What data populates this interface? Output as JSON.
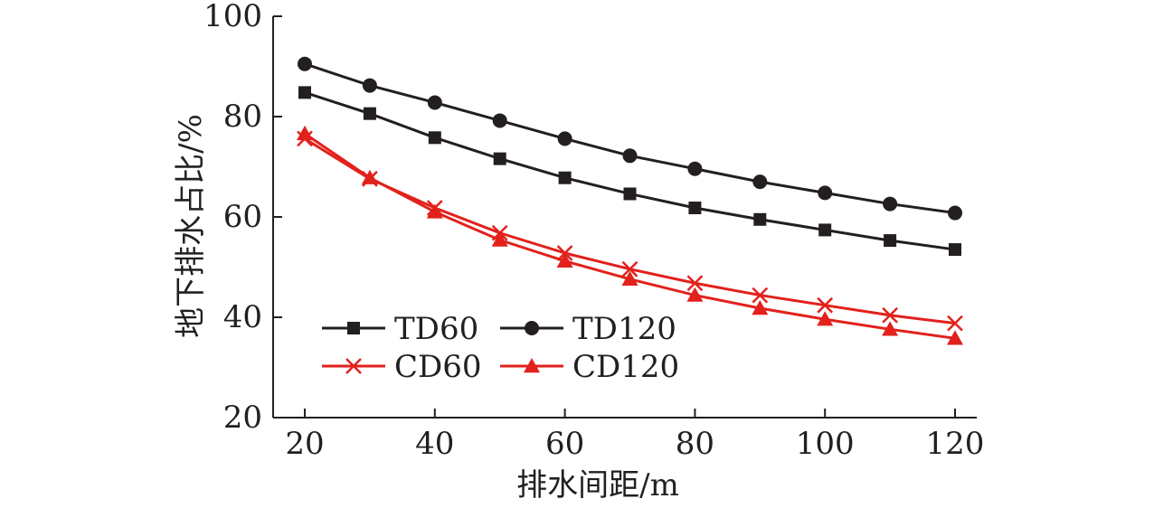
{
  "chart_data": {
    "type": "line",
    "title": "",
    "xlabel": "排水间距/m",
    "ylabel": "地下排水占比/%",
    "xlim": [
      15,
      125
    ],
    "ylim": [
      20,
      100
    ],
    "x_ticks": [
      20,
      40,
      60,
      80,
      100,
      120
    ],
    "y_ticks": [
      20,
      40,
      60,
      80,
      100
    ],
    "x": [
      20,
      30,
      40,
      50,
      60,
      70,
      80,
      90,
      100,
      110,
      120
    ],
    "grid": false,
    "legend_placement": "bottom-left",
    "series": [
      {
        "name": "TD60",
        "color": "#231f20",
        "marker": "square",
        "values": [
          84.8,
          80.6,
          75.8,
          71.6,
          67.8,
          64.6,
          61.8,
          59.5,
          57.4,
          55.3,
          53.5
        ]
      },
      {
        "name": "TD120",
        "color": "#231f20",
        "marker": "circle",
        "values": [
          90.5,
          86.2,
          82.8,
          79.2,
          75.6,
          72.2,
          69.6,
          67.0,
          64.8,
          62.6,
          60.8
        ]
      },
      {
        "name": "CD60",
        "color": "#e2211c",
        "marker": "x",
        "values": [
          75.6,
          67.6,
          61.8,
          56.8,
          52.8,
          49.6,
          46.8,
          44.4,
          42.4,
          40.4,
          38.8
        ]
      },
      {
        "name": "CD120",
        "color": "#e2211c",
        "marker": "triangle",
        "values": [
          76.6,
          67.8,
          61.0,
          55.4,
          51.2,
          47.6,
          44.4,
          41.8,
          39.6,
          37.6,
          35.8
        ]
      }
    ]
  }
}
